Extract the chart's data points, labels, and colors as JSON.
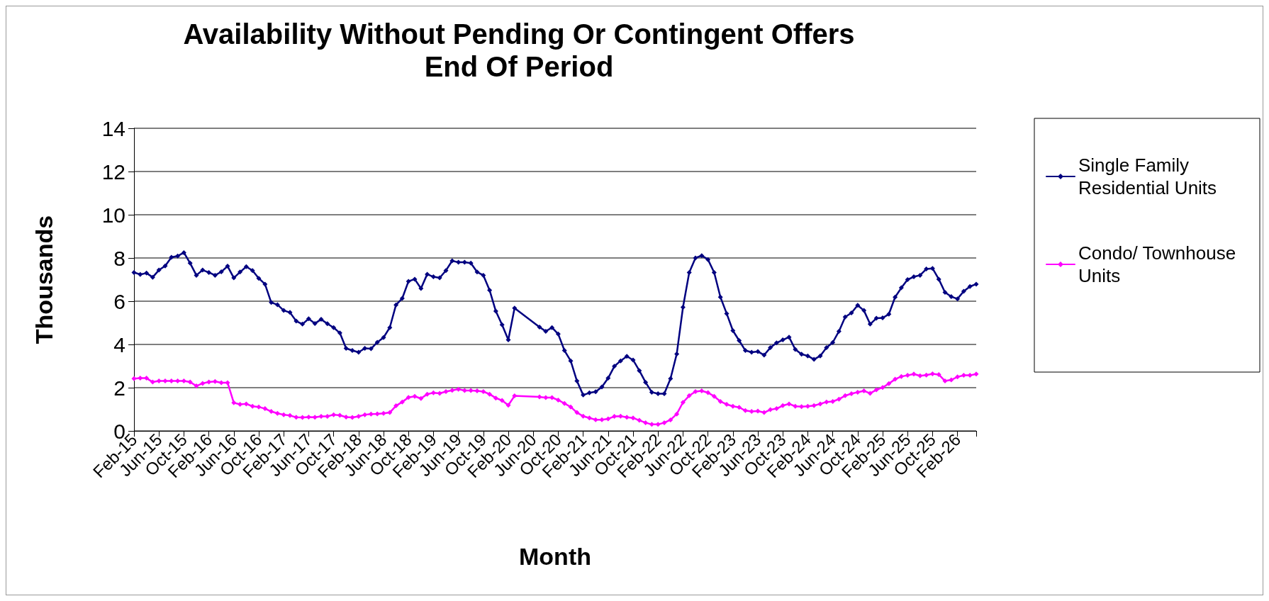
{
  "chart_data": {
    "type": "line",
    "title": "Availability Without Pending Or Contingent Offers",
    "subtitle": "End Of Period",
    "xlabel": "Month",
    "ylabel": "Thousands",
    "categories": [
      "Feb-15",
      null,
      null,
      null,
      "Jun-15",
      null,
      null,
      null,
      "Oct-15",
      null,
      null,
      null,
      "Feb-16",
      null,
      null,
      null,
      "Jun-16",
      null,
      null,
      null,
      "Oct-16",
      null,
      null,
      null,
      "Feb-17",
      null,
      null,
      null,
      "Jun-17",
      null,
      null,
      null,
      "Oct-17",
      null,
      null,
      null,
      "Feb-18",
      null,
      null,
      null,
      "Jun-18",
      null,
      null,
      null,
      "Oct-18",
      null,
      null,
      null,
      "Feb-19",
      null,
      null,
      null,
      "Jun-19",
      null,
      null,
      null,
      "Oct-19",
      null,
      null,
      null,
      "Feb-20",
      null,
      null,
      null,
      "Jun-20",
      null,
      null,
      null,
      "Oct-20",
      null,
      null,
      null,
      "Feb-21",
      null,
      null,
      null,
      "Jun-21",
      null,
      null,
      null,
      "Oct-21",
      null,
      null,
      null,
      "Feb-22",
      null,
      null,
      null,
      "Jun-22",
      null,
      null,
      null,
      "Oct-22",
      null,
      null,
      null,
      "Feb-23",
      null,
      null,
      null,
      "Jun-23",
      null,
      null,
      null,
      "Oct-23",
      null,
      null,
      null,
      "Feb-24",
      null,
      null,
      null,
      "Jun-24",
      null,
      null,
      null,
      "Oct-24",
      null,
      null,
      null,
      "Feb-25",
      null,
      null,
      null,
      "Jun-25",
      null,
      null,
      null,
      "Oct-25",
      null,
      null,
      null,
      "Feb-26",
      null,
      null,
      null
    ],
    "series": [
      {
        "name": "Single Family Residential Units",
        "color": "#000080",
        "values": [
          7.33,
          7.24,
          7.3,
          7.11,
          7.44,
          7.63,
          8.03,
          8.09,
          8.25,
          7.76,
          7.2,
          7.44,
          7.33,
          7.2,
          7.36,
          7.62,
          7.08,
          7.35,
          7.6,
          7.42,
          7.06,
          6.79,
          5.94,
          5.84,
          5.57,
          5.48,
          5.08,
          4.94,
          5.19,
          4.97,
          5.16,
          4.96,
          4.78,
          4.53,
          3.82,
          3.72,
          3.64,
          3.82,
          3.8,
          4.1,
          4.32,
          4.78,
          5.83,
          6.13,
          6.92,
          7.02,
          6.59,
          7.25,
          7.13,
          7.08,
          7.42,
          7.87,
          7.8,
          7.8,
          7.76,
          7.35,
          7.2,
          6.51,
          5.54,
          4.91,
          4.21,
          5.68,
          null,
          null,
          null,
          4.8,
          4.61,
          4.78,
          4.48,
          3.72,
          3.24,
          2.31,
          1.66,
          1.76,
          1.81,
          2.03,
          2.44,
          2.99,
          3.24,
          3.45,
          3.28,
          2.79,
          2.25,
          1.79,
          1.72,
          1.72,
          2.42,
          3.56,
          5.72,
          7.33,
          8.0,
          8.11,
          7.93,
          7.33,
          6.19,
          5.43,
          4.64,
          4.18,
          3.72,
          3.64,
          3.67,
          3.51,
          3.85,
          4.07,
          4.21,
          4.34,
          3.77,
          3.55,
          3.47,
          3.31,
          3.47,
          3.85,
          4.09,
          4.61,
          5.27,
          5.46,
          5.81,
          5.57,
          4.94,
          5.21,
          5.23,
          5.4,
          6.19,
          6.62,
          7.0,
          7.13,
          7.2,
          7.49,
          7.52,
          7.02,
          6.41,
          6.21,
          6.11,
          6.46,
          6.68,
          6.79
        ]
      },
      {
        "name": "Condo/ Townhouse Units",
        "color": "#ff00ff",
        "values": [
          2.42,
          2.44,
          2.44,
          2.26,
          2.31,
          2.31,
          2.31,
          2.31,
          2.31,
          2.26,
          2.08,
          2.2,
          2.26,
          2.29,
          2.23,
          2.23,
          1.3,
          1.23,
          1.25,
          1.14,
          1.11,
          1.03,
          0.9,
          0.81,
          0.75,
          0.71,
          0.63,
          0.62,
          0.64,
          0.63,
          0.67,
          0.67,
          0.75,
          0.72,
          0.64,
          0.62,
          0.67,
          0.75,
          0.78,
          0.79,
          0.81,
          0.85,
          1.16,
          1.34,
          1.55,
          1.6,
          1.5,
          1.7,
          1.76,
          1.74,
          1.82,
          1.88,
          1.93,
          1.87,
          1.87,
          1.85,
          1.82,
          1.7,
          1.52,
          1.41,
          1.19,
          1.62,
          null,
          null,
          null,
          1.57,
          1.54,
          1.54,
          1.43,
          1.27,
          1.11,
          0.85,
          0.68,
          0.6,
          0.52,
          0.52,
          0.56,
          0.67,
          0.68,
          0.63,
          0.6,
          0.49,
          0.38,
          0.3,
          0.3,
          0.38,
          0.51,
          0.78,
          1.32,
          1.63,
          1.82,
          1.85,
          1.77,
          1.6,
          1.36,
          1.23,
          1.14,
          1.09,
          0.94,
          0.9,
          0.92,
          0.85,
          0.98,
          1.03,
          1.17,
          1.25,
          1.14,
          1.12,
          1.14,
          1.17,
          1.25,
          1.34,
          1.36,
          1.47,
          1.63,
          1.72,
          1.79,
          1.85,
          1.74,
          1.9,
          2.01,
          2.19,
          2.39,
          2.52,
          2.57,
          2.63,
          2.55,
          2.58,
          2.64,
          2.61,
          2.31,
          2.36,
          2.5,
          2.57,
          2.57,
          2.63
        ]
      }
    ],
    "ylim": [
      0,
      14
    ],
    "yticks": [
      0,
      2,
      4,
      6,
      8,
      10,
      12,
      14
    ],
    "grid": "y",
    "legend": "right",
    "marker": "diamond",
    "line_style": "solid"
  }
}
